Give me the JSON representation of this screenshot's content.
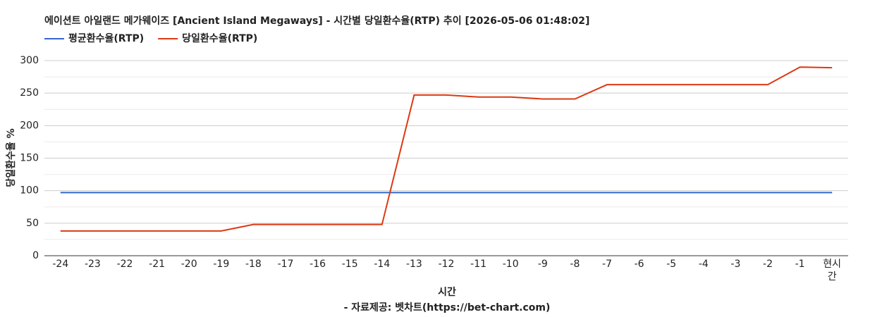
{
  "chart_data": {
    "type": "line",
    "title": "에이션트 아일랜드 메가웨이즈 [Ancient Island Megaways] - 시간별 당일환수율(RTP) 추이 [2026-05-06 01:48:02]",
    "x_label": "시간",
    "y_label": "당일환수율 %",
    "source": "- 자료제공: 벳차트(https://bet-chart.com)",
    "categories": [
      "-24",
      "-23",
      "-22",
      "-21",
      "-20",
      "-19",
      "-18",
      "-17",
      "-16",
      "-15",
      "-14",
      "-13",
      "-12",
      "-11",
      "-10",
      "-9",
      "-8",
      "-7",
      "-6",
      "-5",
      "-4",
      "-3",
      "-2",
      "-1",
      "현시간"
    ],
    "series": [
      {
        "name": "평균환수율(RTP)",
        "color": "#3366cc",
        "values": [
          97,
          97,
          97,
          97,
          97,
          97,
          97,
          97,
          97,
          97,
          97,
          97,
          97,
          97,
          97,
          97,
          97,
          97,
          97,
          97,
          97,
          97,
          97,
          97,
          97
        ]
      },
      {
        "name": "당일환수율(RTP)",
        "color": "#dc3912",
        "values": [
          38,
          38,
          38,
          38,
          38,
          38,
          48,
          48,
          48,
          48,
          48,
          247,
          247,
          244,
          244,
          241,
          241,
          263,
          263,
          263,
          263,
          263,
          263,
          290,
          289
        ]
      }
    ],
    "ylim": [
      0,
      300
    ],
    "yticks": [
      0,
      50,
      100,
      150,
      200,
      250,
      300
    ],
    "minor_yticks": [
      25,
      75,
      125,
      175,
      225,
      275
    ],
    "grid": true,
    "legend": "top-left"
  }
}
